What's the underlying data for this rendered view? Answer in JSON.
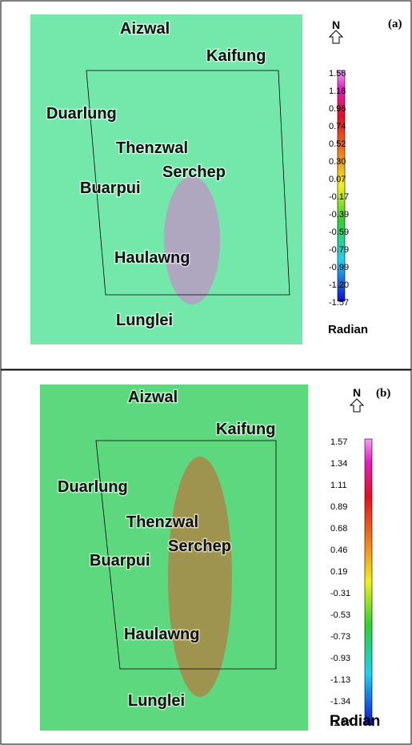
{
  "panels": [
    {
      "label": "(a)",
      "north": "N",
      "places": [
        "Aizwal",
        "Kaifung",
        "Duarlung",
        "Thenzwal",
        "Serchep",
        "Buarpui",
        "Haulawng",
        "Lunglei"
      ],
      "colorbar": {
        "ticks": [
          "1.56",
          "1.18",
          "0.96",
          "0.74",
          "0.52",
          "0.30",
          "0.07",
          "-0.17",
          "-0.39",
          "-0.59",
          "-0.79",
          "-0.99",
          "-1.20",
          "-1.57"
        ],
        "unit": "Radian"
      }
    },
    {
      "label": "(b)",
      "north": "N",
      "places": [
        "Aizwal",
        "Kaifung",
        "Duarlung",
        "Thenzwal",
        "Serchep",
        "Buarpui",
        "Haulawng",
        "Lunglei"
      ],
      "colorbar": {
        "ticks": [
          "1.57",
          "1.34",
          "1.11",
          "0.89",
          "0.68",
          "0.46",
          "0.19",
          "-0.31",
          "-0.53",
          "-0.73",
          "-0.93",
          "-1.13",
          "-1.34",
          "-1.57"
        ],
        "unit": "Radian"
      }
    }
  ]
}
